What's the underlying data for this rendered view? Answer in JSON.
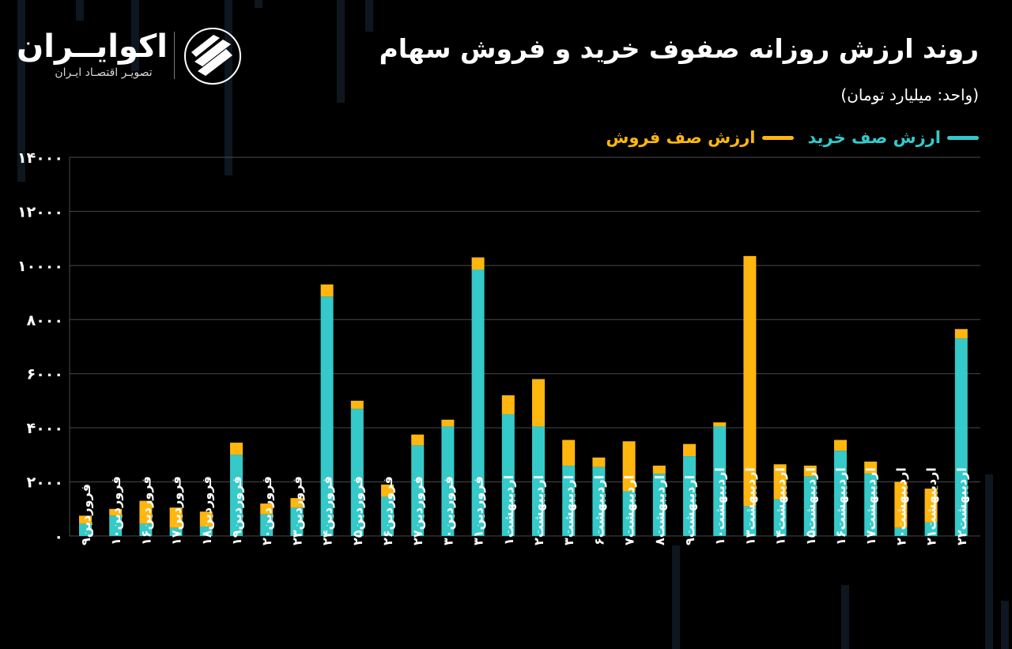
{
  "header": {
    "title": "روند ارزش روزانه صفوف خرید و فروش سهام",
    "unit": "(واحد: میلیارد تومان)"
  },
  "logo": {
    "name": "اکوایــران",
    "tagline": "تصویـر اقتصـاد ایـران",
    "icon": "ekoiran-logo-icon"
  },
  "colors": {
    "buy": "#35c9c9",
    "sell": "#ffb60f",
    "background": "#000000",
    "grid": "#4a4a4a",
    "text": "#ffffff"
  },
  "legend": {
    "buy_label": "ارزش صف خرید",
    "sell_label": "ارزش صف فروش"
  },
  "chart_data": {
    "type": "bar",
    "stacked": true,
    "ylim": [
      0,
      14000
    ],
    "yticks": [
      "۰",
      "۲۰۰۰",
      "۴۰۰۰",
      "۶۰۰۰",
      "۸۰۰۰",
      "۱۰۰۰۰",
      "۱۲۰۰۰",
      "۱۴۰۰۰"
    ],
    "ytick_values": [
      0,
      2000,
      4000,
      6000,
      8000,
      10000,
      12000,
      14000
    ],
    "grid": true,
    "legend_position": "top-right",
    "categories": [
      "فروردین۹",
      "فروردین۱۰",
      "فروردین۱۶",
      "فروردین۱۷",
      "فروردین۱۸",
      "فروردین۱۹",
      "فروردین۲۰",
      "فروردین۲۳",
      "فروردین۲۴",
      "فروردین۲۵",
      "فروردین۲۶",
      "فروردین۲۷",
      "فروردین۳۰",
      "فروردین۳۱",
      "اردیبهشت۱",
      "اردیبهشت۲",
      "اردیبهشت۳",
      "اردیبهشت۶",
      "اردیبهشت۷",
      "اردیبهشت۸",
      "اردیبهشت۹",
      "اردیبهشت۱۰",
      "اردیبهشت۱۳",
      "اردیبهشت۱۴",
      "اردیبهشت۱۵",
      "اردیبهشت۱۶",
      "اردیبهشت۱۷",
      "اردیبهشت۲۰",
      "اردیبهشت۲۱",
      "اردیبهشت۲۲"
    ],
    "series": [
      {
        "name": "ارزش صف خرید",
        "values": [
          450,
          750,
          450,
          300,
          350,
          3000,
          800,
          1050,
          8850,
          4700,
          1450,
          3350,
          4050,
          9850,
          4500,
          4050,
          2600,
          2550,
          1650,
          2300,
          2950,
          4050,
          1100,
          1350,
          2200,
          3150,
          2300,
          300,
          500,
          7300
        ]
      },
      {
        "name": "ارزش صف فروش",
        "values": [
          300,
          250,
          850,
          750,
          550,
          450,
          400,
          350,
          450,
          300,
          450,
          400,
          250,
          450,
          700,
          1750,
          950,
          350,
          1850,
          300,
          450,
          150,
          9250,
          1300,
          400,
          400,
          450,
          1700,
          1250,
          350
        ]
      }
    ]
  }
}
